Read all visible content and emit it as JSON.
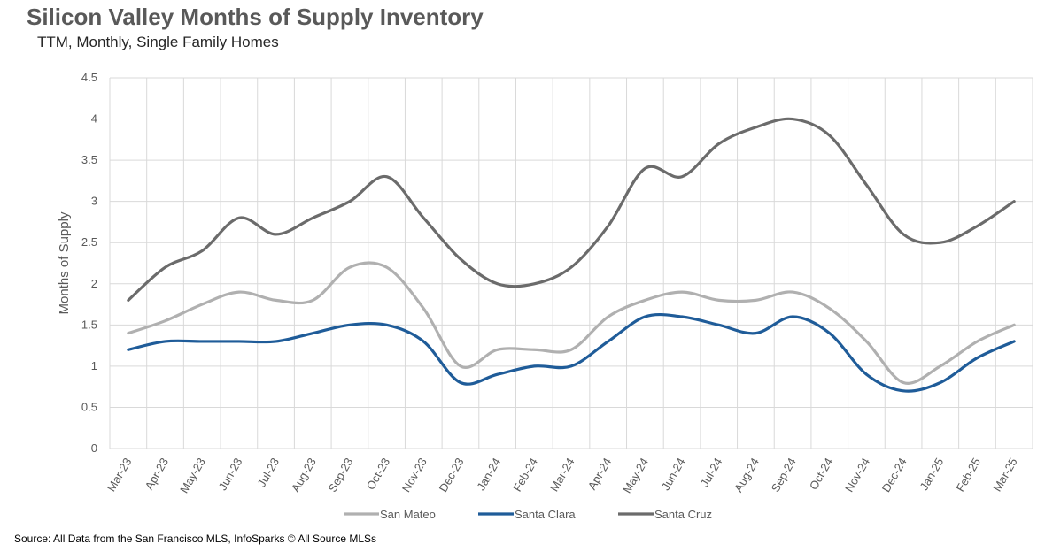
{
  "header": {
    "title": "Silicon Valley Months of Supply Inventory",
    "subtitle": "TTM, Monthly, Single Family Homes"
  },
  "footer": {
    "source": "Source: All Data from the San Francisco MLS, InfoSparks © All Source MLSs"
  },
  "chart_data": {
    "type": "line",
    "title": "Silicon Valley Months of Supply Inventory",
    "subtitle": "TTM, Monthly, Single Family Homes",
    "xlabel": "",
    "ylabel": "Months of Supply",
    "ylim": [
      0,
      4.5
    ],
    "yticks": [
      0,
      0.5,
      1,
      1.5,
      2,
      2.5,
      3,
      3.5,
      4,
      4.5
    ],
    "grid": true,
    "legend_position": "bottom",
    "categories": [
      "Mar-23",
      "Apr-23",
      "May-23",
      "Jun-23",
      "Jul-23",
      "Aug-23",
      "Sep-23",
      "Oct-23",
      "Nov-23",
      "Dec-23",
      "Jan-24",
      "Feb-24",
      "Mar-24",
      "Apr-24",
      "May-24",
      "Jun-24",
      "Jul-24",
      "Aug-24",
      "Sep-24",
      "Oct-24",
      "Nov-24",
      "Dec-24",
      "Jan-25",
      "Feb-25",
      "Mar-25"
    ],
    "series": [
      {
        "name": "San Mateo",
        "color": "#b0b0b0",
        "values": [
          1.4,
          1.55,
          1.75,
          1.9,
          1.8,
          1.8,
          2.2,
          2.2,
          1.7,
          1.0,
          1.2,
          1.2,
          1.2,
          1.6,
          1.8,
          1.9,
          1.8,
          1.8,
          1.9,
          1.7,
          1.3,
          0.8,
          1.0,
          1.3,
          1.5
        ]
      },
      {
        "name": "Santa Clara",
        "color": "#1f5c99",
        "values": [
          1.2,
          1.3,
          1.3,
          1.3,
          1.3,
          1.4,
          1.5,
          1.5,
          1.3,
          0.8,
          0.9,
          1.0,
          1.0,
          1.3,
          1.6,
          1.6,
          1.5,
          1.4,
          1.6,
          1.4,
          0.9,
          0.7,
          0.8,
          1.1,
          1.3
        ]
      },
      {
        "name": "Santa Cruz",
        "color": "#6b6b6b",
        "values": [
          1.8,
          2.2,
          2.4,
          2.8,
          2.6,
          2.8,
          3.0,
          3.3,
          2.8,
          2.3,
          2.0,
          2.0,
          2.2,
          2.7,
          3.4,
          3.3,
          3.7,
          3.9,
          4.0,
          3.8,
          3.2,
          2.6,
          2.5,
          2.7,
          3.0
        ]
      }
    ]
  }
}
